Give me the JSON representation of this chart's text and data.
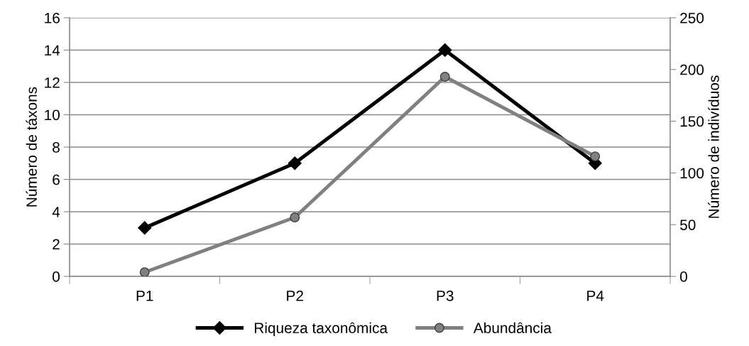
{
  "chart_data": {
    "type": "line",
    "categories": [
      "P1",
      "P2",
      "P3",
      "P4"
    ],
    "ylabel": "Número de táxons",
    "y2label": "Número de indivíduos",
    "series": [
      {
        "name": "Riqueza taxonômica",
        "color": "#000000",
        "values": [
          3,
          7,
          14,
          7
        ],
        "marker": "diamond"
      },
      {
        "name": "Abundância",
        "color": "#808080",
        "values": [
          4,
          57,
          193,
          116
        ],
        "marker": "circle",
        "axis": "y2"
      }
    ],
    "ylim": [
      0,
      16
    ],
    "yticks": [
      0,
      2,
      4,
      6,
      8,
      10,
      12,
      14,
      16
    ],
    "y2lim": [
      0,
      250
    ],
    "y2ticks": [
      0,
      50,
      100,
      150,
      200,
      250
    ],
    "grid": "y",
    "legend": "bottom"
  }
}
